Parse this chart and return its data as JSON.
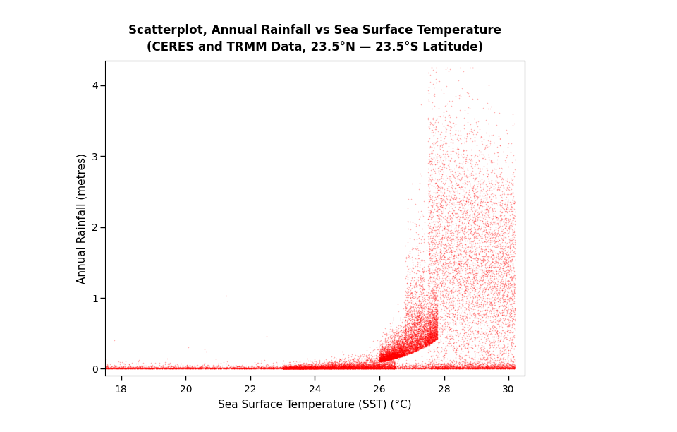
{
  "title_line1": "Scatterplot, Annual Rainfall vs Sea Surface Temperature",
  "title_line2": "(CERES and TRMM Data, 23.5°N — 23.5°S Latitude)",
  "xlabel": "Sea Surface Temperature (SST) (°C)",
  "ylabel": "Annual Rainfall (metres)",
  "xlim": [
    17.5,
    30.5
  ],
  "ylim": [
    -0.1,
    4.35
  ],
  "xticks": [
    18,
    20,
    22,
    24,
    26,
    28,
    30
  ],
  "yticks": [
    0,
    1,
    2,
    3,
    4
  ],
  "dot_color": "#FF0000",
  "dot_alpha": 0.3,
  "dot_size": 1.2,
  "n_points": 22000,
  "background_color": "#ffffff",
  "title_fontsize": 12,
  "axis_label_fontsize": 11,
  "tick_fontsize": 10
}
